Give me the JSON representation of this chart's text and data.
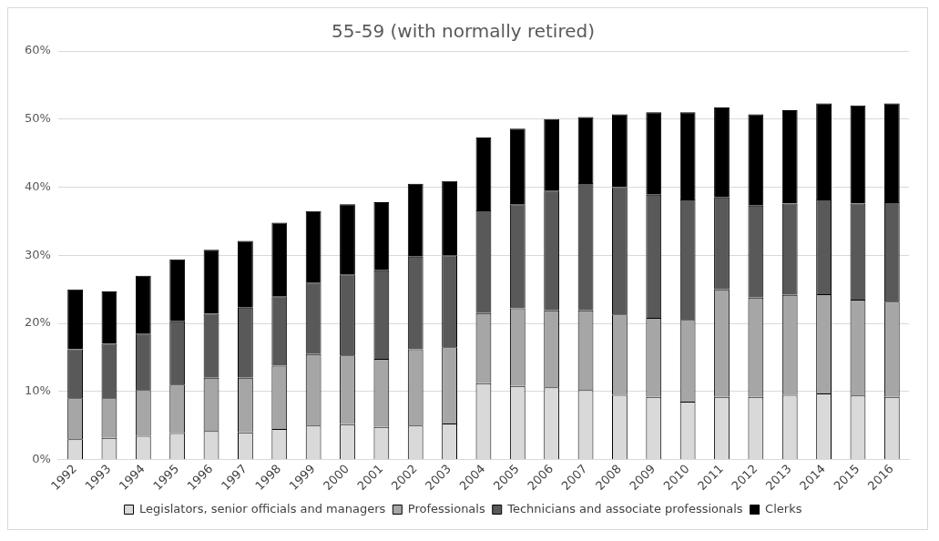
{
  "chart_data": {
    "type": "bar",
    "title": "55-59 (with normally retired)",
    "stacked": true,
    "grid": "y",
    "legend": "bottom",
    "categories": [
      "1992",
      "1993",
      "1994",
      "1995",
      "1996",
      "1997",
      "1998",
      "1999",
      "2000",
      "2001",
      "2002",
      "2003",
      "2004",
      "2005",
      "2006",
      "2007",
      "2008",
      "2009",
      "2010",
      "2011",
      "2012",
      "2013",
      "2014",
      "2015",
      "2016"
    ],
    "ylim": [
      0,
      60
    ],
    "yticks": [
      {
        "value": 0,
        "label": "0%"
      },
      {
        "value": 10,
        "label": "10%"
      },
      {
        "value": 20,
        "label": "20%"
      },
      {
        "value": 30,
        "label": "30%"
      },
      {
        "value": 40,
        "label": "40%"
      },
      {
        "value": 50,
        "label": "50%"
      },
      {
        "value": 60,
        "label": "60%"
      }
    ],
    "series": [
      {
        "name": "Legislators, senior officials and managers",
        "color": "#d9d9d9",
        "values": [
          3,
          3.2,
          3.5,
          3.9,
          4.2,
          4,
          4.5,
          5,
          5.2,
          4.8,
          5,
          5.3,
          11.2,
          10.8,
          10.6,
          10.2,
          9.5,
          9.2,
          8.5,
          9.2,
          9.2,
          9.5,
          9.7,
          9.4,
          9.2
        ]
      },
      {
        "name": "Professionals",
        "color": "#a6a6a6",
        "values": [
          6,
          5.8,
          6.7,
          7.1,
          7.8,
          8,
          9.3,
          10.5,
          10.1,
          10,
          11.2,
          11.2,
          10.3,
          11.4,
          11.3,
          11.7,
          11.8,
          11.6,
          12,
          15.8,
          14.6,
          14.7,
          14.6,
          14.1,
          14
        ]
      },
      {
        "name": "Technicians and associate professionals",
        "color": "#595959",
        "values": [
          7.2,
          8,
          8.3,
          9.3,
          9.4,
          10.3,
          10.2,
          10.5,
          11.9,
          13,
          13.6,
          13.5,
          15.1,
          15.3,
          17.6,
          18.7,
          18.7,
          18.1,
          17.7,
          13.5,
          13.5,
          13.4,
          13.9,
          14.1,
          14.6
        ]
      },
      {
        "name": "Clerks",
        "color": "#000000",
        "values": [
          8.8,
          7.7,
          8.5,
          9.1,
          9.4,
          9.8,
          10.8,
          10.5,
          10.3,
          10,
          10.7,
          10.9,
          10.7,
          11.1,
          10.5,
          9.7,
          10.7,
          12.1,
          12.8,
          13.2,
          13.4,
          13.7,
          14.1,
          14.4,
          14.5
        ]
      }
    ]
  }
}
